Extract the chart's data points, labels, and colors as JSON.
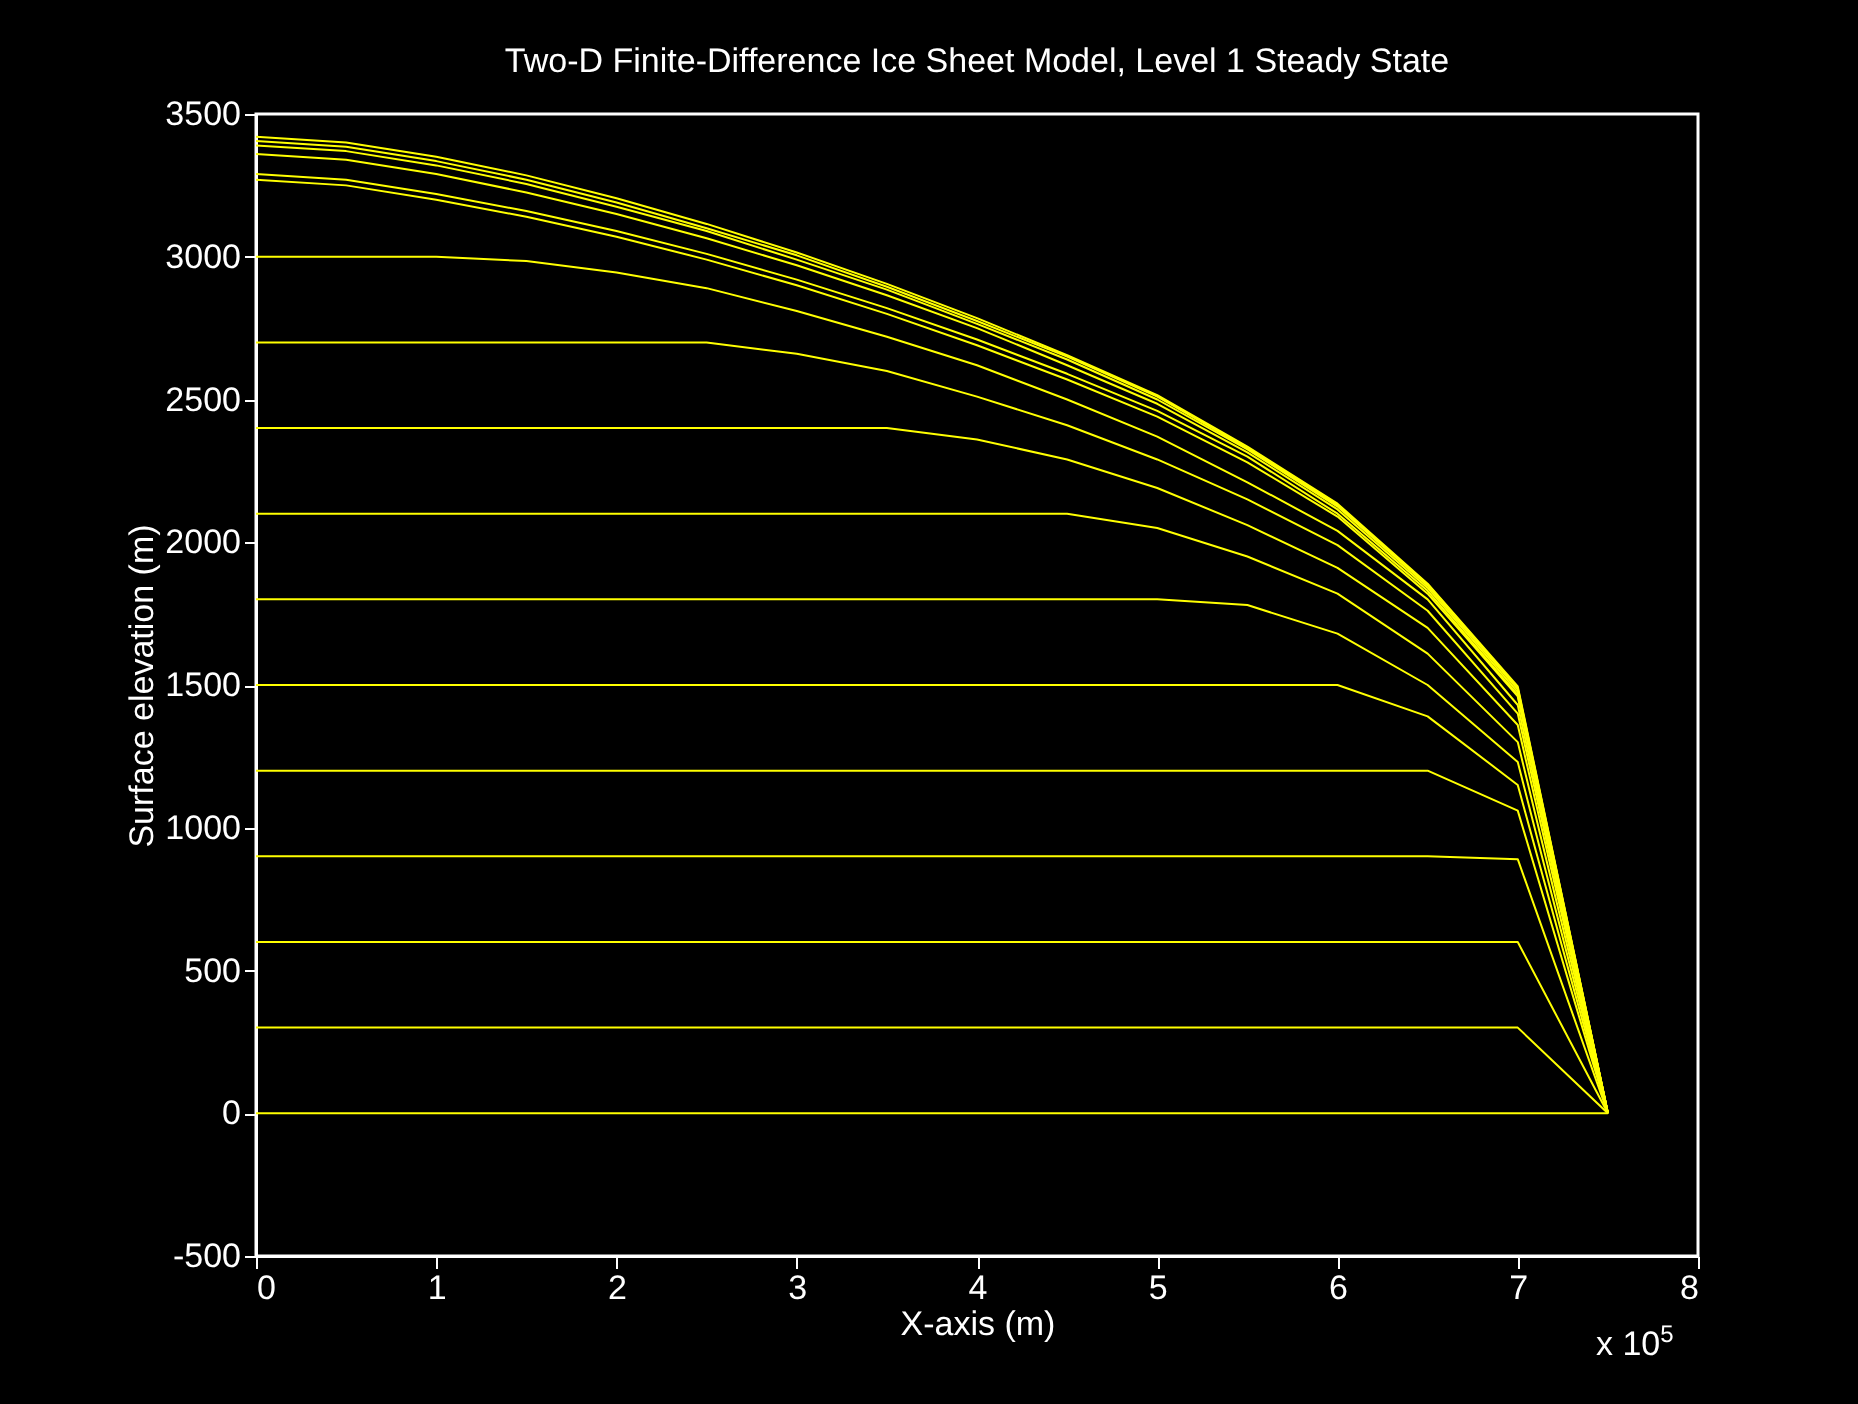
{
  "chart_data": {
    "type": "line",
    "title": "Two-D Finite-Difference Ice Sheet Model, Level 1 Steady State",
    "xlabel": "X-axis (m)",
    "ylabel": "Surface elevation (m)",
    "annotations": [
      "x 10$^{5}$"
    ],
    "x": [
      0,
      0.5,
      1,
      1.5,
      2,
      2.5,
      3,
      3.5,
      4,
      4.5,
      5,
      5.5,
      6,
      6.5,
      7,
      7.5
    ],
    "xlim": [
      0,
      8
    ],
    "xticks": [
      0,
      1,
      2,
      3,
      4,
      5,
      6,
      7,
      8
    ],
    "ylim": [
      -500,
      3500
    ],
    "yticks": [
      -500,
      0,
      500,
      1000,
      1500,
      2000,
      2500,
      3000,
      3500
    ],
    "series": [
      {
        "color": "#ffff00",
        "values": [
          0,
          0,
          0,
          0,
          0,
          0,
          0,
          0,
          0,
          0,
          0,
          0,
          0,
          0,
          0,
          0
        ]
      },
      {
        "color": "#ffff00",
        "values": [
          300,
          300,
          300,
          300,
          300,
          300,
          300,
          300,
          300,
          300,
          300,
          300,
          300,
          300,
          300,
          0
        ]
      },
      {
        "color": "#ffff00",
        "values": [
          600,
          600,
          600,
          600,
          600,
          600,
          600,
          600,
          600,
          600,
          600,
          600,
          600,
          600,
          600,
          0
        ]
      },
      {
        "color": "#ffff00",
        "values": [
          900,
          900,
          900,
          900,
          900,
          900,
          900,
          900,
          900,
          900,
          900,
          900,
          900,
          900,
          890,
          0
        ]
      },
      {
        "color": "#ffff00",
        "values": [
          1200,
          1200,
          1200,
          1200,
          1200,
          1200,
          1200,
          1200,
          1200,
          1200,
          1200,
          1200,
          1200,
          1200,
          1060,
          0
        ]
      },
      {
        "color": "#ffff00",
        "values": [
          1500,
          1500,
          1500,
          1500,
          1500,
          1500,
          1500,
          1500,
          1500,
          1500,
          1500,
          1500,
          1500,
          1390,
          1150,
          0
        ]
      },
      {
        "color": "#ffff00",
        "values": [
          1800,
          1800,
          1800,
          1800,
          1800,
          1800,
          1800,
          1800,
          1800,
          1800,
          1800,
          1780,
          1680,
          1500,
          1230,
          0
        ]
      },
      {
        "color": "#ffff00",
        "values": [
          2100,
          2100,
          2100,
          2100,
          2100,
          2100,
          2100,
          2100,
          2100,
          2100,
          2050,
          1950,
          1820,
          1610,
          1300,
          0
        ]
      },
      {
        "color": "#ffff00",
        "values": [
          2400,
          2400,
          2400,
          2400,
          2400,
          2400,
          2400,
          2400,
          2360,
          2290,
          2190,
          2060,
          1910,
          1700,
          1360,
          0
        ]
      },
      {
        "color": "#ffff00",
        "values": [
          2700,
          2700,
          2700,
          2700,
          2700,
          2700,
          2660,
          2600,
          2510,
          2410,
          2290,
          2150,
          1990,
          1760,
          1400,
          0
        ]
      },
      {
        "color": "#ffff00",
        "values": [
          3000,
          3000,
          3000,
          2985,
          2945,
          2890,
          2810,
          2720,
          2620,
          2500,
          2370,
          2210,
          2040,
          1800,
          1430,
          0
        ]
      },
      {
        "color": "#ffff00",
        "values": [
          3270,
          3250,
          3200,
          3140,
          3070,
          2990,
          2900,
          2800,
          2690,
          2570,
          2440,
          2280,
          2090,
          1820,
          1460,
          0
        ]
      },
      {
        "color": "#ffff00",
        "values": [
          3290,
          3270,
          3220,
          3160,
          3090,
          3010,
          2920,
          2820,
          2710,
          2590,
          2460,
          2300,
          2100,
          1830,
          1465,
          0
        ]
      },
      {
        "color": "#ffff00",
        "values": [
          3360,
          3340,
          3290,
          3225,
          3150,
          3065,
          2970,
          2865,
          2750,
          2620,
          2485,
          2315,
          2115,
          1840,
          1475,
          0
        ]
      },
      {
        "color": "#ffff00",
        "values": [
          3390,
          3370,
          3320,
          3255,
          3175,
          3090,
          2990,
          2885,
          2765,
          2640,
          2500,
          2325,
          2125,
          1848,
          1485,
          0
        ]
      },
      {
        "color": "#ffff00",
        "values": [
          3405,
          3385,
          3335,
          3270,
          3190,
          3100,
          3005,
          2895,
          2775,
          2650,
          2510,
          2330,
          2130,
          1852,
          1490,
          0
        ]
      },
      {
        "color": "#ffff00",
        "values": [
          3420,
          3400,
          3350,
          3285,
          3205,
          3115,
          3015,
          2905,
          2785,
          2655,
          2515,
          2335,
          2135,
          1855,
          1495,
          0
        ]
      }
    ]
  }
}
